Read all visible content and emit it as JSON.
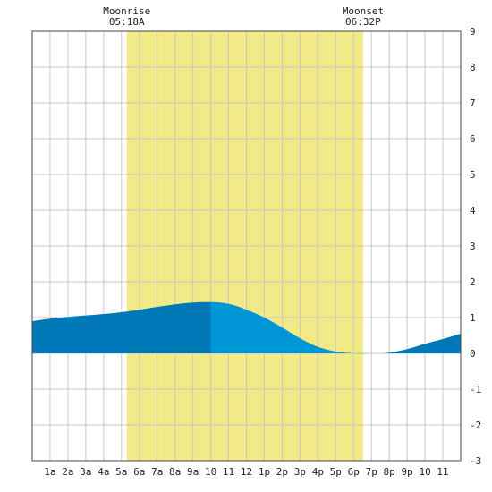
{
  "chart_data": {
    "type": "area",
    "moon_events": [
      {
        "label": "Moonrise",
        "time": "05:18A",
        "hour": 5.3
      },
      {
        "label": "Moonset",
        "time": "06:32P",
        "hour": 18.533
      }
    ],
    "x_tick_labels": [
      "1a",
      "2a",
      "3a",
      "4a",
      "5a",
      "6a",
      "7a",
      "8a",
      "9a",
      "10",
      "11",
      "12",
      "1p",
      "2p",
      "3p",
      "4p",
      "5p",
      "6p",
      "7p",
      "8p",
      "9p",
      "10",
      "11"
    ],
    "xlim": [
      0,
      24
    ],
    "ylim": [
      -3,
      9
    ],
    "y_ticks": [
      -3,
      -2,
      -1,
      0,
      1,
      2,
      3,
      4,
      5,
      6,
      7,
      8,
      9
    ],
    "grid": true,
    "series": [
      {
        "x": [
          0,
          1,
          2,
          3,
          4,
          5,
          6,
          7,
          8,
          9,
          10,
          11,
          12,
          13,
          14,
          15,
          16,
          17,
          18,
          19,
          19.5,
          20,
          21,
          22,
          23,
          24
        ],
        "values": [
          0.9,
          0.97,
          1.02,
          1.06,
          1.1,
          1.15,
          1.22,
          1.3,
          1.37,
          1.42,
          1.43,
          1.38,
          1.22,
          1.0,
          0.72,
          0.42,
          0.18,
          0.05,
          0.0,
          0.0,
          0.0,
          0.02,
          0.12,
          0.27,
          0.4,
          0.55
        ]
      }
    ],
    "colors": {
      "night_fill": "#0077b6",
      "day_fill": "#0096d6",
      "moon_band": "#f2ea86",
      "grid": "#c8c8c8",
      "border": "#444444"
    },
    "day_tide_range": [
      10,
      19.5
    ]
  }
}
